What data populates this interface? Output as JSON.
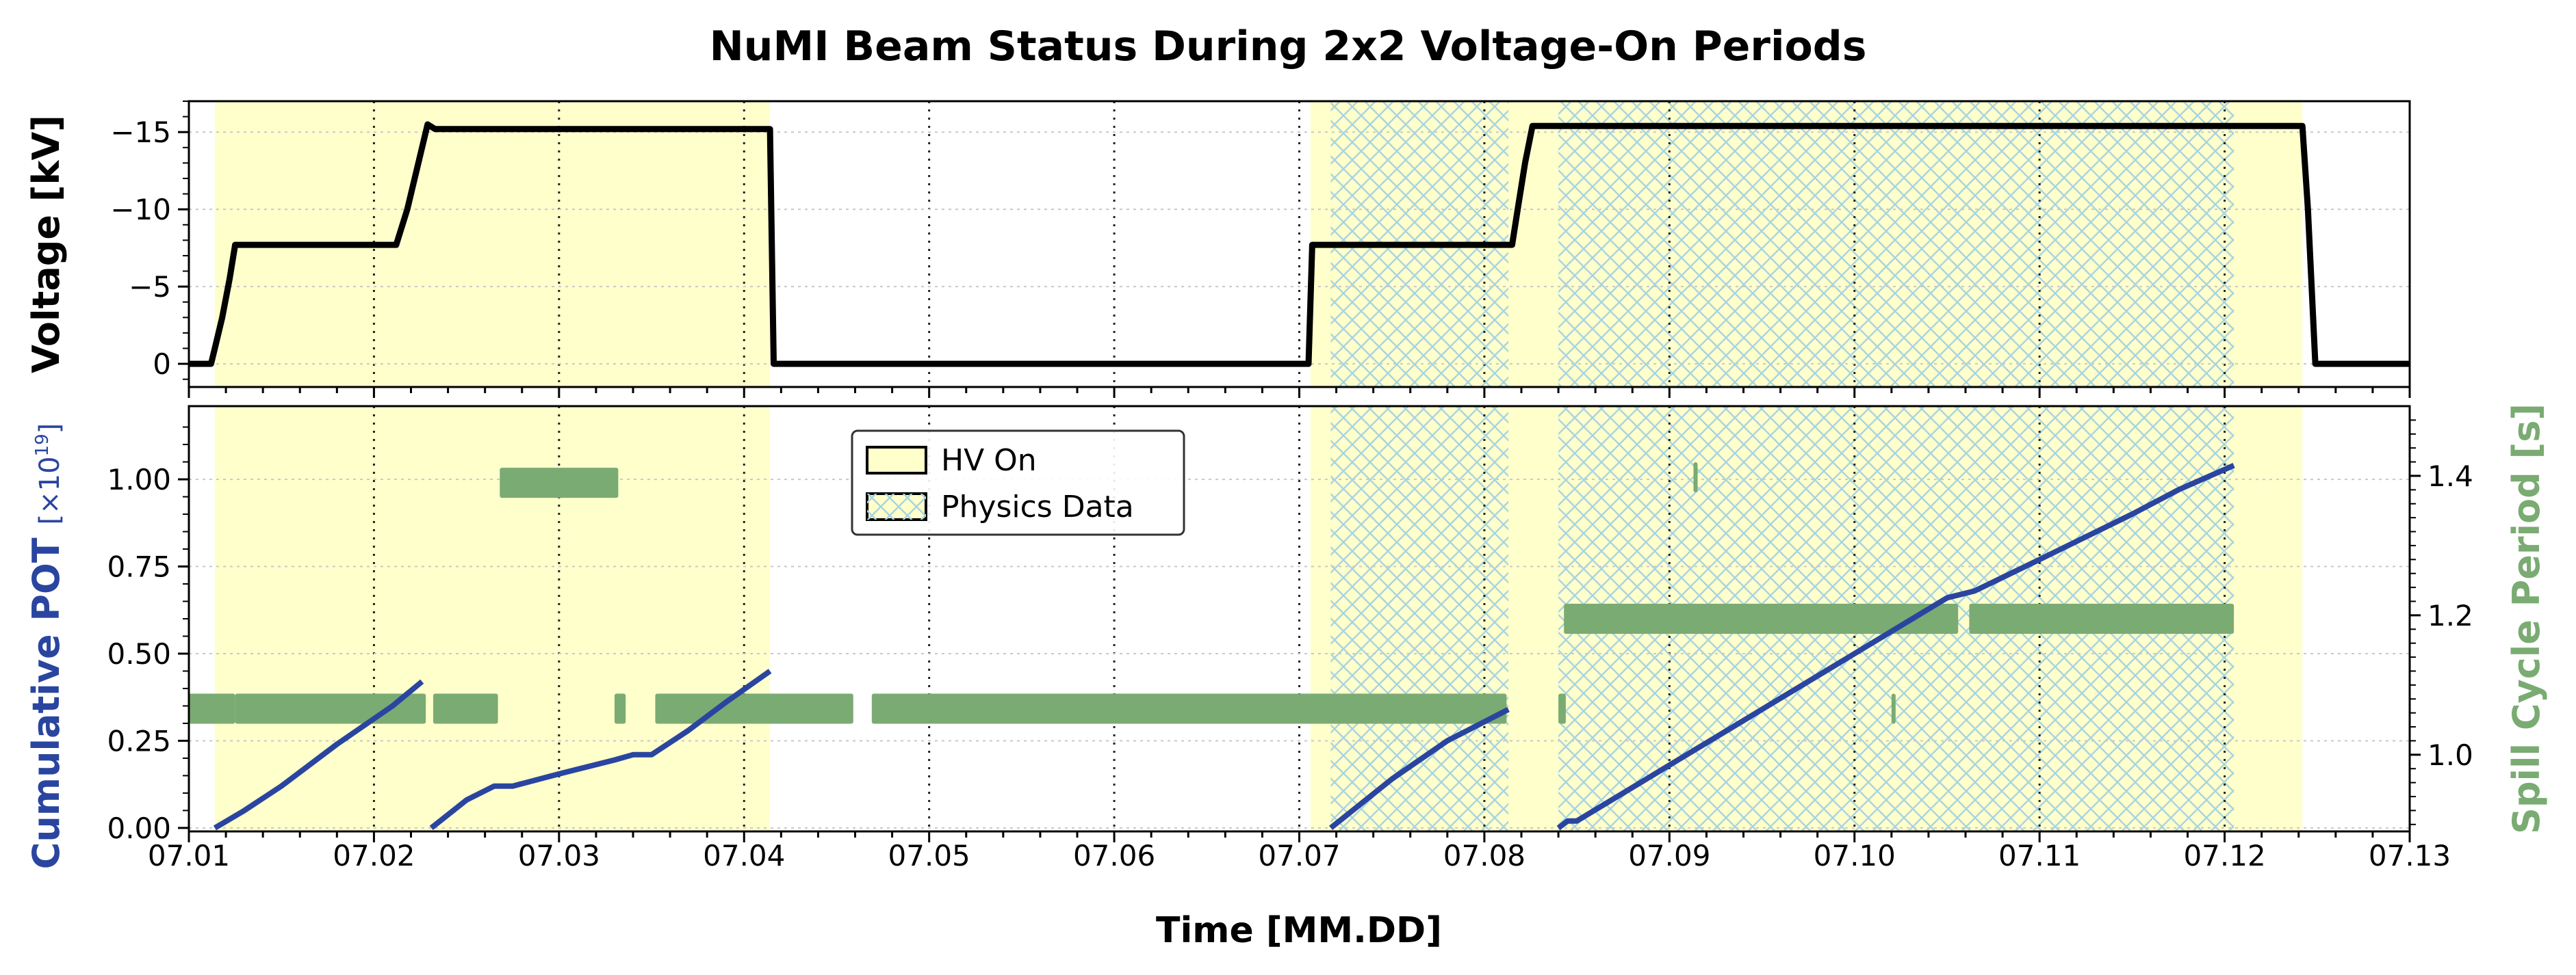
{
  "chart_data": {
    "title": "NuMI Beam Status During 2x2 Voltage-On Periods",
    "xlabel": "Time [MM.DD]",
    "xlim": [
      7.01,
      7.13
    ],
    "x_ticks": [
      "07.01",
      "07.02",
      "07.03",
      "07.04",
      "07.05",
      "07.06",
      "07.07",
      "07.08",
      "07.09",
      "07.10",
      "07.11",
      "07.12",
      "07.13"
    ],
    "shading": {
      "hv_on_color": "#ffffcc",
      "physics_hatch_color": "#a8d4e0",
      "hv_on": [
        [
          7.0114,
          7.0414
        ],
        [
          7.0706,
          7.1242
        ]
      ],
      "physics_data": [
        [
          7.0717,
          7.0813
        ],
        [
          7.084,
          7.1205
        ]
      ]
    },
    "legend": {
      "position": "upper-center",
      "entries": [
        "HV On",
        "Physics Data"
      ]
    },
    "panels": [
      {
        "type": "line",
        "ylabel": "Voltage [kV]",
        "ylim": [
          1.5,
          -17
        ],
        "y_ticks": [
          {
            "value": 0,
            "label": "0"
          },
          {
            "value": -5,
            "label": "−5"
          },
          {
            "value": -10,
            "label": "−10"
          },
          {
            "value": -15,
            "label": "−15"
          }
        ],
        "series": [
          {
            "color": "#000000",
            "points": [
              [
                7.01,
                0
              ],
              [
                7.0112,
                0
              ],
              [
                7.0114,
                -1
              ],
              [
                7.0118,
                -3
              ],
              [
                7.0122,
                -5.5
              ],
              [
                7.0125,
                -7.7
              ],
              [
                7.02,
                -7.7
              ],
              [
                7.0212,
                -7.7
              ],
              [
                7.0218,
                -10
              ],
              [
                7.0222,
                -12
              ],
              [
                7.0226,
                -14
              ],
              [
                7.0229,
                -15.5
              ],
              [
                7.0233,
                -15.2
              ],
              [
                7.0414,
                -15.2
              ],
              [
                7.0416,
                0
              ],
              [
                7.0705,
                0
              ],
              [
                7.0707,
                -7.7
              ],
              [
                7.0815,
                -7.7
              ],
              [
                7.0818,
                -10
              ],
              [
                7.0822,
                -13
              ],
              [
                7.0826,
                -15.4
              ],
              [
                7.1205,
                -15.4
              ],
              [
                7.1242,
                -15.4
              ],
              [
                7.1245,
                -10
              ],
              [
                7.1249,
                0
              ],
              [
                7.13,
                0
              ]
            ]
          }
        ]
      },
      {
        "type": "line+scatter",
        "ylabel": "Cumulative POT",
        "ylabel_unit": "[×10",
        "ylabel_unit_exp": "19",
        "ylabel_unit_close": "]",
        "ylabel_color": "#2a45a0",
        "ylim": [
          -0.01,
          1.21
        ],
        "y_ticks": [
          {
            "value": 0,
            "label": "0.00"
          },
          {
            "value": 0.25,
            "label": "0.25"
          },
          {
            "value": 0.5,
            "label": "0.50"
          },
          {
            "value": 0.75,
            "label": "0.75"
          },
          {
            "value": 1.0,
            "label": "1.00"
          }
        ],
        "series": [
          {
            "name": "Cumulative POT",
            "color": "#2a45a0",
            "segments": [
              [
                [
                  7.0114,
                  0
                ],
                [
                  7.013,
                  0.05
                ],
                [
                  7.015,
                  0.12
                ],
                [
                  7.018,
                  0.24
                ],
                [
                  7.021,
                  0.35
                ],
                [
                  7.0226,
                  0.42
                ]
              ],
              [
                [
                  7.0231,
                  0
                ],
                [
                  7.025,
                  0.08
                ],
                [
                  7.0265,
                  0.12
                ],
                [
                  7.0275,
                  0.12
                ],
                [
                  7.03,
                  0.155
                ],
                [
                  7.033,
                  0.195
                ],
                [
                  7.034,
                  0.21
                ],
                [
                  7.035,
                  0.21
                ],
                [
                  7.037,
                  0.28
                ],
                [
                  7.039,
                  0.36
                ],
                [
                  7.0414,
                  0.45
                ]
              ],
              [
                [
                  7.0717,
                  0
                ],
                [
                  7.075,
                  0.14
                ],
                [
                  7.078,
                  0.25
                ],
                [
                  7.0813,
                  0.34
                ]
              ],
              [
                [
                  7.084,
                  0
                ],
                [
                  7.0845,
                  0.02
                ],
                [
                  7.085,
                  0.02
                ],
                [
                  7.09,
                  0.18
                ],
                [
                  7.095,
                  0.34
                ],
                [
                  7.1,
                  0.5
                ],
                [
                  7.105,
                  0.66
                ],
                [
                  7.1065,
                  0.68
                ],
                [
                  7.11,
                  0.77
                ],
                [
                  7.115,
                  0.9
                ],
                [
                  7.1175,
                  0.97
                ],
                [
                  7.1205,
                  1.04
                ]
              ]
            ]
          },
          {
            "name": "Spill Cycle Period",
            "axis": "right",
            "color": "#7aab72",
            "right_ylabel": "Spill Cycle Period [s]",
            "right_ylabel_color": "#7aab72",
            "right_ylim": [
              0.89,
              1.5
            ],
            "right_y_ticks": [
              {
                "value": 1.0,
                "label": "1.0"
              },
              {
                "value": 1.2,
                "label": "1.2"
              },
              {
                "value": 1.4,
                "label": "1.4"
              }
            ],
            "bands": [
              {
                "x0": 7.01,
                "x1": 7.0125,
                "y": 1.066
              },
              {
                "x0": 7.0125,
                "x1": 7.0228,
                "y": 1.066
              },
              {
                "x0": 7.0232,
                "x1": 7.0267,
                "y": 1.066
              },
              {
                "x0": 7.0268,
                "x1": 7.0332,
                "y": 1.39
              },
              {
                "x0": 7.033,
                "x1": 7.0336,
                "y": 1.066
              },
              {
                "x0": 7.0352,
                "x1": 7.0459,
                "y": 1.066
              },
              {
                "x0": 7.0469,
                "x1": 7.0812,
                "y": 1.066
              },
              {
                "x0": 7.084,
                "x1": 7.0844,
                "y": 1.066
              },
              {
                "x0": 7.0843,
                "x1": 7.1056,
                "y": 1.195
              },
              {
                "x0": 7.1062,
                "x1": 7.1205,
                "y": 1.195
              },
              {
                "x0": 7.0913,
                "x1": 7.0915,
                "y": 1.398
              },
              {
                "x0": 7.102,
                "x1": 7.1022,
                "y": 1.066
              }
            ]
          }
        ]
      }
    ],
    "grid": "x-dotted-major"
  }
}
